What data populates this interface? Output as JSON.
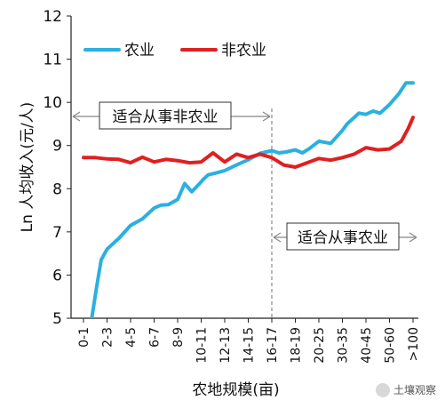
{
  "chart_data": {
    "type": "line",
    "ylabel": "Ln 人均收入(元/人)",
    "xlabel": "农地规模(亩)",
    "ylim": [
      5,
      12
    ],
    "yticks": [
      "5",
      "6",
      "7",
      "8",
      "9",
      "10",
      "11",
      "12"
    ],
    "categories": [
      "0-1",
      "2-3",
      "4-5",
      "6-7",
      "8-9",
      "10-11",
      "12-13",
      "14-15",
      "16-17",
      "18-19",
      "20-25",
      "30-35",
      "40-45",
      "50-60",
      ">100"
    ],
    "series": [
      {
        "name": "农业",
        "color": "#2bb0e0",
        "x": [
          0.35,
          0.55,
          0.75,
          1.0,
          1.5,
          2.0,
          2.5,
          3.0,
          3.3,
          3.6,
          4.0,
          4.3,
          4.6,
          4.9,
          5.1,
          5.3,
          5.6,
          6.0,
          6.5,
          7.0,
          7.5,
          8.0,
          8.3,
          8.6,
          9.0,
          9.3,
          9.6,
          10.0,
          10.5,
          11.0,
          11.2,
          11.4,
          11.7,
          12.0,
          12.3,
          12.6,
          13.0,
          13.4,
          13.7,
          14.0
        ],
        "values": [
          5.0,
          5.7,
          6.35,
          6.6,
          6.85,
          7.15,
          7.3,
          7.55,
          7.62,
          7.63,
          7.75,
          8.12,
          7.93,
          8.1,
          8.22,
          8.32,
          8.36,
          8.42,
          8.55,
          8.67,
          8.82,
          8.88,
          8.83,
          8.85,
          8.9,
          8.83,
          8.93,
          9.1,
          9.05,
          9.35,
          9.5,
          9.6,
          9.75,
          9.72,
          9.8,
          9.75,
          9.95,
          10.2,
          10.45,
          10.45
        ]
      },
      {
        "name": "非农业",
        "color": "#e02020",
        "x": [
          0,
          0.5,
          1.0,
          1.5,
          2.0,
          2.5,
          3.0,
          3.5,
          4.0,
          4.5,
          5.0,
          5.5,
          6.0,
          6.5,
          7.0,
          7.5,
          8.0,
          8.5,
          9.0,
          9.5,
          10.0,
          10.5,
          11.0,
          11.5,
          12.0,
          12.5,
          13.0,
          13.5,
          13.8,
          14.0
        ],
        "values": [
          8.72,
          8.72,
          8.69,
          8.68,
          8.6,
          8.73,
          8.62,
          8.68,
          8.65,
          8.6,
          8.62,
          8.83,
          8.62,
          8.8,
          8.72,
          8.8,
          8.72,
          8.55,
          8.5,
          8.6,
          8.7,
          8.66,
          8.72,
          8.8,
          8.95,
          8.9,
          8.92,
          9.1,
          9.4,
          9.65
        ]
      }
    ],
    "legend": {
      "placement": "top-left",
      "entries": [
        "农业",
        "非农业"
      ]
    },
    "divider_category": "16-17",
    "annotations": [
      {
        "text": "适合从事非农业",
        "side": "left"
      },
      {
        "text": "适合从事农业",
        "side": "right"
      }
    ],
    "grid": false
  },
  "watermark": {
    "text": "土壤观察"
  }
}
